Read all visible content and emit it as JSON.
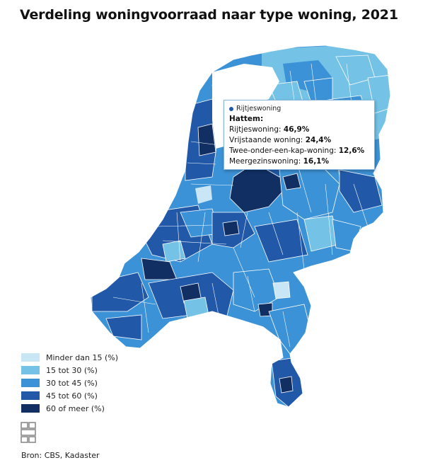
{
  "title": "Verdeling woningvoorraad naar type woning, 2021",
  "colors": {
    "c1": "#c9e6f7",
    "c2": "#74c2e6",
    "c3": "#3c92d6",
    "c4": "#2159a8",
    "c5": "#112f63",
    "border": "#ffffff",
    "tooltip_border": "#88b7dd"
  },
  "legend": {
    "items": [
      {
        "label": "Minder dan 15 (%)",
        "color_key": "c1"
      },
      {
        "label": "15 tot 30 (%)",
        "color_key": "c2"
      },
      {
        "label": "30 tot 45 (%)",
        "color_key": "c3"
      },
      {
        "label": "45 tot 60 (%)",
        "color_key": "c4"
      },
      {
        "label": "60 of meer (%)",
        "color_key": "c5"
      }
    ]
  },
  "tooltip": {
    "series": "Rijtjeswoning",
    "place": "Hattem:",
    "rows": [
      {
        "label": "Rijtjeswoning:",
        "value": "46,9%"
      },
      {
        "label": "Vrijstaande woning:",
        "value": "24,4%"
      },
      {
        "label": "Twee-onder-een-kap-woning:",
        "value": "12,6%"
      },
      {
        "label": "Meergezinswoning:",
        "value": "16,1%"
      }
    ]
  },
  "logo_icon": "cbs-logo-icon",
  "source": "Bron: CBS, Kadaster"
}
